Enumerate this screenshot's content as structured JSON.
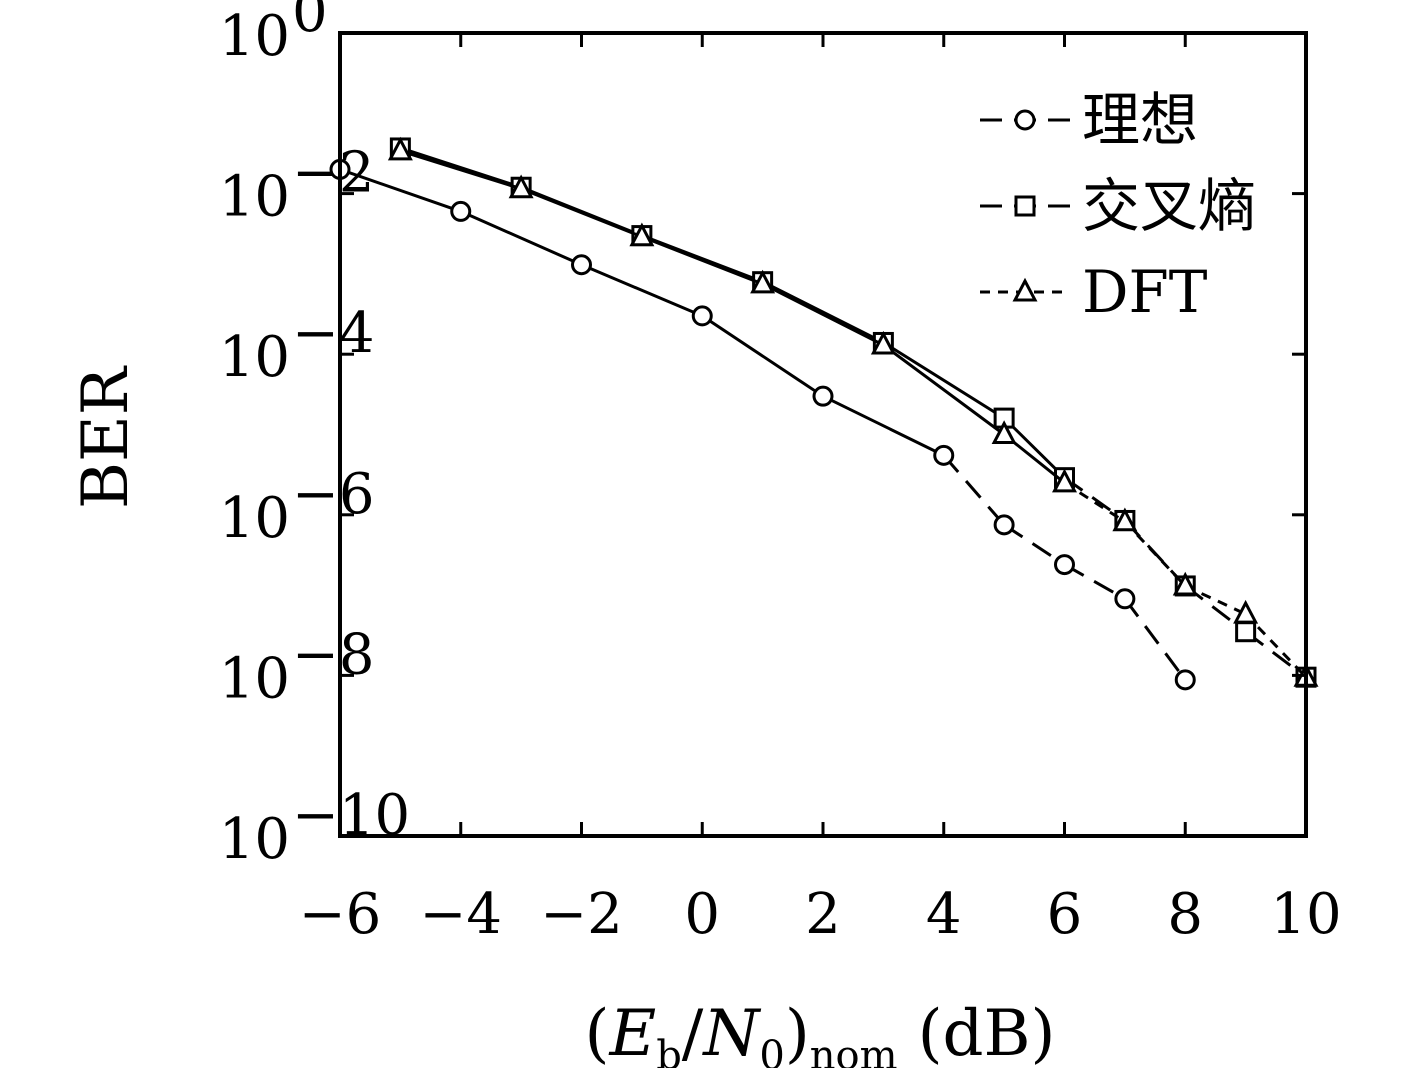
{
  "chart_data": {
    "type": "line",
    "title": "",
    "xlabel": {
      "pre": "(",
      "E": "E",
      "E_sub": "b",
      "slash": "/",
      "N": "N",
      "N_sub": "0",
      "close": ")",
      "close_sub": "nom",
      "unit": "(dB)"
    },
    "ylabel": "BER",
    "xlim": [
      -6,
      10
    ],
    "ylim": [
      1e-10,
      1
    ],
    "yscale": "log",
    "xticks": [
      -6,
      -4,
      -2,
      0,
      2,
      4,
      6,
      8,
      10
    ],
    "xtick_labels": [
      "−6",
      "−4",
      "−2",
      "0",
      "2",
      "4",
      "6",
      "8",
      "10"
    ],
    "yticks": [
      {
        "value": 1,
        "base": "10",
        "exp": "0"
      },
      {
        "value": 0.01,
        "base": "10",
        "exp": "−2"
      },
      {
        "value": 0.0001,
        "base": "10",
        "exp": "−4"
      },
      {
        "value": 1e-06,
        "base": "10",
        "exp": "−6"
      },
      {
        "value": 1e-08,
        "base": "10",
        "exp": "−8"
      },
      {
        "value": 1e-10,
        "base": "10",
        "exp": "−10"
      }
    ],
    "grid": false,
    "legend_position": "top-right",
    "series": [
      {
        "name": "理想",
        "marker": "circle",
        "line": "dash",
        "x": [
          -6,
          -4,
          -2,
          0,
          2,
          4,
          5,
          6,
          7,
          8
        ],
        "y": [
          0.02,
          0.006,
          0.0013,
          0.0003,
          3e-05,
          5.5e-06,
          7.5e-07,
          2.4e-07,
          9e-08,
          8.8e-09
        ],
        "solid_until_x": 4
      },
      {
        "name": "交叉熵",
        "marker": "square",
        "line": "dash",
        "x": [
          -5,
          -3,
          -1,
          1,
          3,
          5,
          6,
          7,
          8,
          9,
          10
        ],
        "y": [
          0.037,
          0.012,
          0.003,
          0.0008,
          0.00014,
          1.6e-05,
          2.9e-06,
          8.5e-07,
          1.3e-07,
          3.5e-08,
          9.5e-09
        ],
        "solid_until_x": 6
      },
      {
        "name": "DFT",
        "marker": "triangle",
        "line": "dot",
        "x": [
          -5,
          -3,
          -1,
          1,
          3,
          5,
          6,
          7,
          8,
          9,
          10
        ],
        "y": [
          0.034,
          0.0115,
          0.0029,
          0.00075,
          0.00013,
          1e-05,
          2.5e-06,
          8.2e-07,
          1.3e-07,
          5.8e-08,
          9.5e-09
        ],
        "solid_until_x": 6
      }
    ]
  },
  "colors": {
    "line": "#000000",
    "background": "#ffffff"
  }
}
